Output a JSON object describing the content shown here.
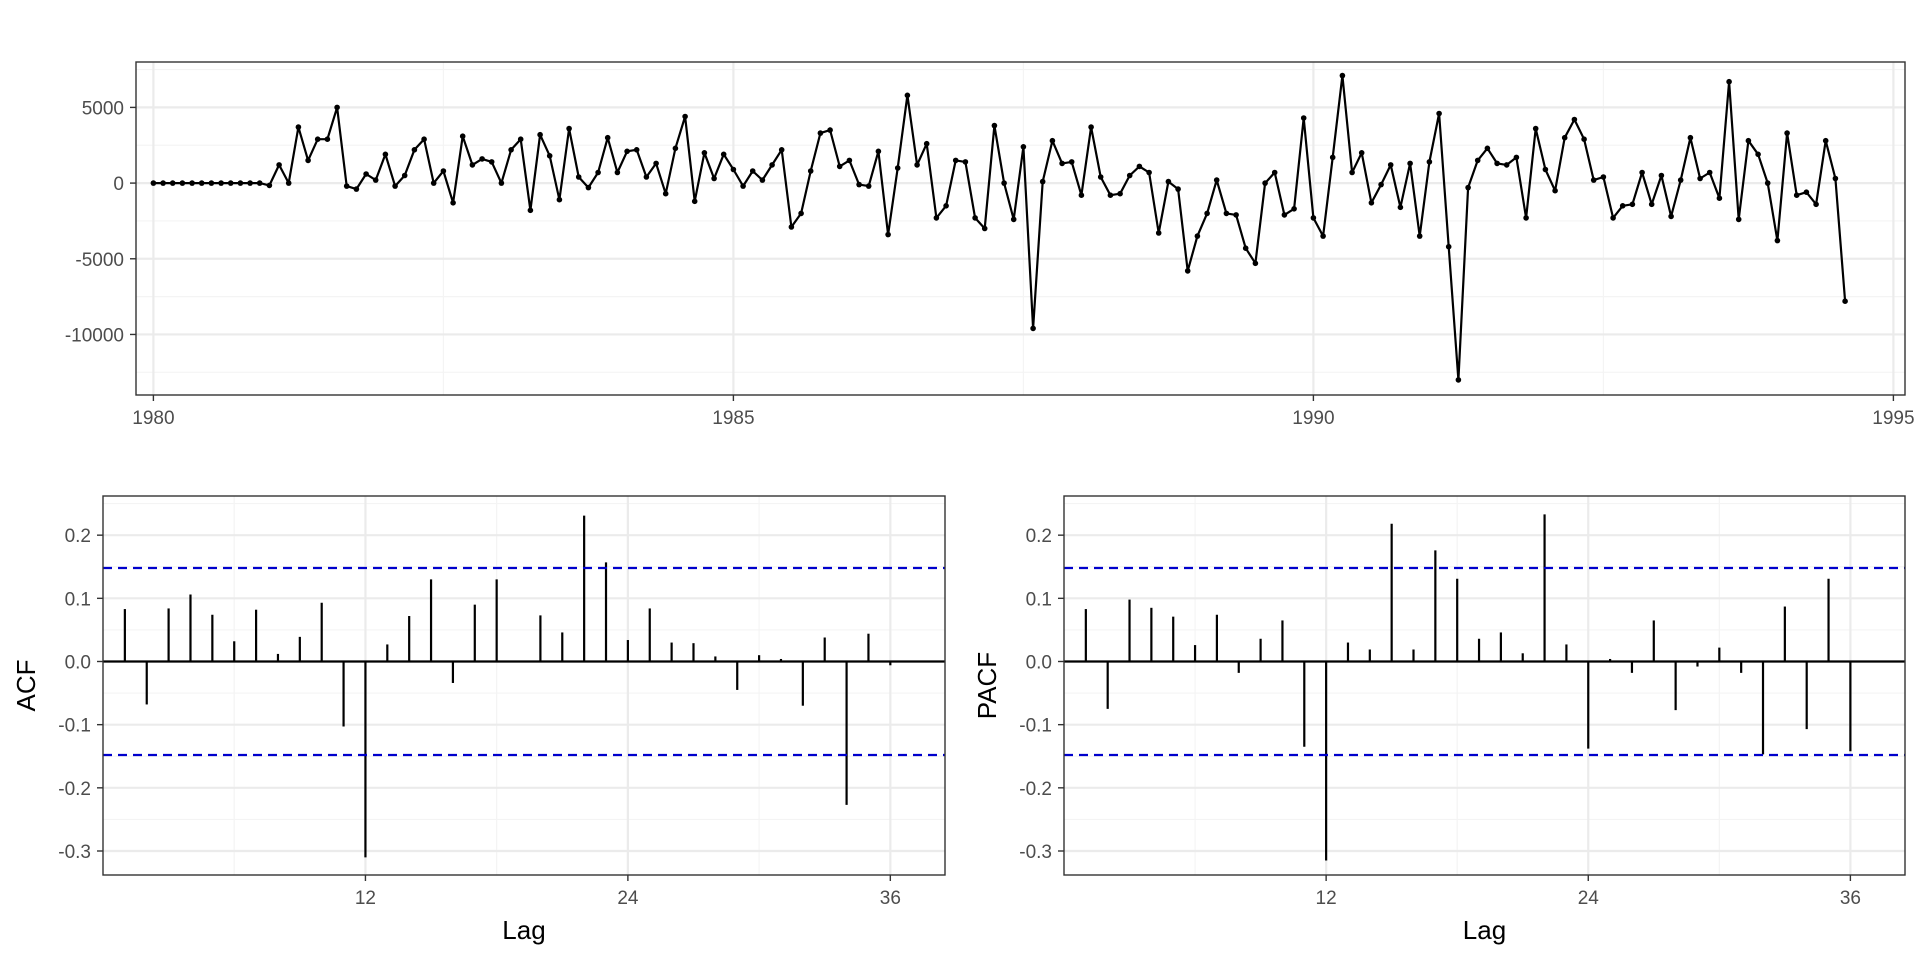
{
  "chart_data": [
    {
      "type": "line",
      "title": "",
      "xlabel": "",
      "ylabel": "",
      "x_start": 1980.0,
      "x_step": 0.08333333,
      "xlim": [
        1979.85,
        1995.1
      ],
      "ylim": [
        -14000,
        8000
      ],
      "xticks": [
        1980,
        1985,
        1990,
        1995
      ],
      "yticks": [
        5000,
        0,
        -5000,
        -10000
      ],
      "grid": true,
      "values": [
        0,
        0,
        0,
        0,
        0,
        0,
        0,
        0,
        0,
        0,
        0,
        0,
        -150,
        1200,
        0,
        3700,
        1500,
        2900,
        2900,
        5000,
        -200,
        -400,
        600,
        200,
        1900,
        -200,
        500,
        2200,
        2900,
        0,
        800,
        -1300,
        3100,
        1200,
        1600,
        1400,
        0,
        2200,
        2900,
        -1800,
        3200,
        1800,
        -1100,
        3600,
        400,
        -300,
        700,
        3000,
        700,
        2100,
        2200,
        400,
        1300,
        -700,
        2300,
        4400,
        -1200,
        2000,
        300,
        1900,
        900,
        -200,
        800,
        200,
        1200,
        2200,
        -2900,
        -2000,
        800,
        3300,
        3500,
        1100,
        1500,
        -100,
        -200,
        2100,
        -3400,
        1000,
        5800,
        1200,
        2600,
        -2300,
        -1500,
        1500,
        1400,
        -2300,
        -3000,
        3800,
        0,
        -2400,
        2400,
        -9600,
        100,
        2800,
        1300,
        1400,
        -800,
        3700,
        400,
        -800,
        -700,
        500,
        1100,
        700,
        -3300,
        100,
        -400,
        -5800,
        -3500,
        -2000,
        200,
        -2000,
        -2100,
        -4300,
        -5300,
        0,
        700,
        -2100,
        -1700,
        4300,
        -2300,
        -3500,
        1700,
        7100,
        700,
        2000,
        -1300,
        -100,
        1200,
        -1600,
        1300,
        -3500,
        1400,
        4600,
        -4200,
        -13000,
        -300,
        1500,
        2300,
        1300,
        1200,
        1700,
        -2300,
        3600,
        900,
        -500,
        3000,
        4200,
        2900,
        200,
        400,
        -2300,
        -1500,
        -1400,
        700,
        -1400,
        500,
        -2200,
        200,
        3000,
        300,
        700,
        -1000,
        6700,
        -2400,
        2800,
        1900,
        0,
        -3800,
        3300,
        -800,
        -600,
        -1400,
        2800,
        300,
        -7800
      ]
    },
    {
      "type": "bar",
      "title": "",
      "xlabel": "Lag",
      "ylabel": "ACF",
      "lags": [
        1,
        2,
        3,
        4,
        5,
        6,
        7,
        8,
        9,
        10,
        11,
        12,
        13,
        14,
        15,
        16,
        17,
        18,
        19,
        20,
        21,
        22,
        23,
        24,
        25,
        26,
        27,
        28,
        29,
        30,
        31,
        32,
        33,
        34,
        35,
        36
      ],
      "values": [
        0.083,
        -0.068,
        0.084,
        0.106,
        0.074,
        0.032,
        0.082,
        0.012,
        0.039,
        0.093,
        -0.103,
        -0.31,
        0.027,
        0.072,
        0.13,
        -0.034,
        0.09,
        0.13,
        0.0,
        0.073,
        0.046,
        0.231,
        0.157,
        0.034,
        0.084,
        0.03,
        0.029,
        0.008,
        -0.045,
        0.01,
        0.004,
        -0.07,
        0.038,
        -0.227,
        0.044,
        -0.006
      ],
      "ci": 0.148,
      "xlim": [
        0,
        38.5
      ],
      "ylim": [
        -0.338,
        0.262
      ],
      "xticks": [
        12,
        24,
        36
      ],
      "yticks": [
        0.2,
        0.1,
        0.0,
        -0.1,
        -0.2,
        -0.3
      ],
      "grid": true
    },
    {
      "type": "bar",
      "title": "",
      "xlabel": "Lag",
      "ylabel": "PACF",
      "lags": [
        1,
        2,
        3,
        4,
        5,
        6,
        7,
        8,
        9,
        10,
        11,
        12,
        13,
        14,
        15,
        16,
        17,
        18,
        19,
        20,
        21,
        22,
        23,
        24,
        25,
        26,
        27,
        28,
        29,
        30,
        31,
        32,
        33,
        34,
        35,
        36
      ],
      "values": [
        0.083,
        -0.075,
        0.098,
        0.085,
        0.071,
        0.026,
        0.074,
        -0.018,
        0.036,
        0.065,
        -0.135,
        -0.315,
        0.03,
        0.019,
        0.218,
        0.019,
        0.176,
        0.131,
        0.036,
        0.046,
        0.013,
        0.233,
        0.027,
        -0.138,
        0.004,
        -0.018,
        0.065,
        -0.077,
        -0.008,
        0.022,
        -0.018,
        -0.147,
        0.087,
        -0.107,
        0.131,
        -0.142
      ],
      "ci": 0.148,
      "xlim": [
        0,
        38.5
      ],
      "ylim": [
        -0.338,
        0.262
      ],
      "xticks": [
        12,
        24,
        36
      ],
      "yticks": [
        0.2,
        0.1,
        0.0,
        -0.1,
        -0.2,
        -0.3
      ],
      "grid": true
    }
  ],
  "colors": {
    "series": "#000000",
    "ci_line": "#0000cc",
    "grid_major": "#ebebeb",
    "grid_minor": "#f4f4f4",
    "panel_border": "#333333",
    "tick_text": "#4d4d4d"
  }
}
